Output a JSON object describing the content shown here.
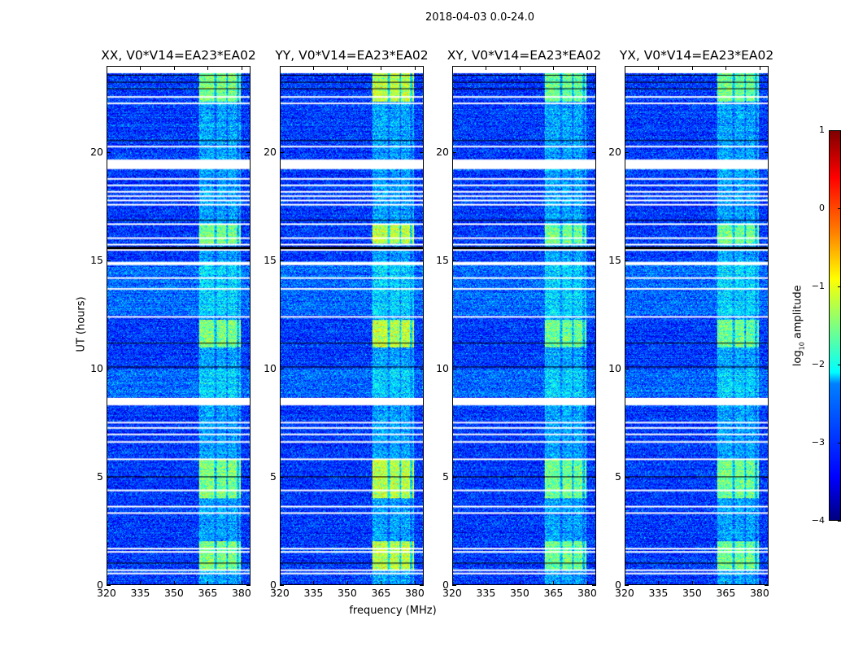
{
  "title": "2018-04-03 0.0-24.0",
  "chart_data": {
    "type": "heatmap",
    "title": "2018-04-03 0.0-24.0",
    "xlabel": "frequency (MHz)",
    "ylabel": "UT (hours)",
    "xlim": [
      320,
      384
    ],
    "ylim": [
      0,
      24
    ],
    "xticks": [
      "320",
      "335",
      "350",
      "365",
      "380"
    ],
    "xtick_values": [
      320,
      335,
      350,
      365,
      380
    ],
    "yticks": [
      "0",
      "5",
      "10",
      "15",
      "20"
    ],
    "ytick_values": [
      0,
      5,
      10,
      15,
      20
    ],
    "panels": [
      {
        "title": "XX, V0*V14=EA23*EA02",
        "rfi_gain": 1.0
      },
      {
        "title": "YY, V0*V14=EA23*EA02",
        "rfi_gain": 1.2
      },
      {
        "title": "XY, V0*V14=EA23*EA02",
        "rfi_gain": 0.95
      },
      {
        "title": "YX, V0*V14=EA23*EA02",
        "rfi_gain": 0.95
      }
    ],
    "background_log_amplitude": -3.1,
    "rfi_band_mhz": [
      361,
      380
    ],
    "rfi_bright_hours": [
      [
        0.7,
        2.0
      ],
      [
        4.0,
        5.8
      ],
      [
        11.0,
        12.3
      ],
      [
        15.8,
        16.7
      ],
      [
        22.4,
        23.8
      ]
    ],
    "flagged_hours_wide": [
      [
        19.25,
        19.7
      ],
      [
        8.3,
        8.65
      ],
      [
        14.8,
        14.95
      ]
    ],
    "flagged_hours_thin": [
      0.5,
      0.65,
      1.5,
      1.65,
      3.3,
      3.6,
      4.35,
      5.8,
      6.6,
      6.95,
      7.25,
      7.5,
      12.4,
      13.7,
      14.2,
      15.5,
      15.75,
      16.05,
      16.7,
      17.6,
      17.8,
      18.0,
      18.2,
      18.5,
      18.8,
      20.3,
      22.3,
      22.6,
      23.75
    ],
    "zero_hours": [
      1.0,
      5.0,
      10.1,
      11.2,
      15.65,
      16.9,
      20.6,
      23.0,
      23.3
    ],
    "colorbar": {
      "label": "log",
      "label_sub": "10",
      "label_rest": " amplitude",
      "range": [
        -4,
        1
      ],
      "ticks": [
        "−4",
        "−3",
        "−2",
        "−1",
        "0",
        "1"
      ],
      "tick_values": [
        -4,
        -3,
        -2,
        -1,
        0,
        1
      ],
      "colormap": "jet"
    }
  }
}
